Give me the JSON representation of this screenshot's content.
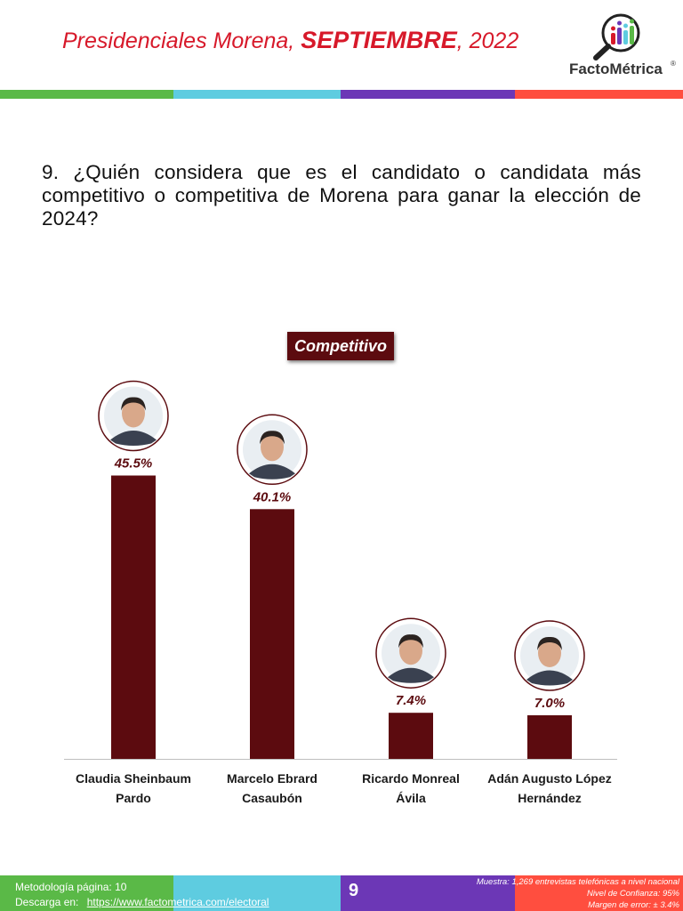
{
  "header": {
    "title_prefix": "Presidenciales Morena,",
    "title_month": "SEPTIEMBRE",
    "title_suffix": ", 2022",
    "brand": "FactoMétrica",
    "brand_mark": "®"
  },
  "stripe_colors": [
    "#5ab947",
    "#5ecce0",
    "#6c37b6",
    "#ff4e3f"
  ],
  "question": "9. ¿Quién considera que es el candidato o candidata más competitivo o competitiva de Morena para ganar la elección de 2024?",
  "chart_data": {
    "type": "bar",
    "series": [
      {
        "name": "Competitivo",
        "values": [
          45.5,
          40.1,
          7.4,
          7.0
        ]
      }
    ],
    "categories": [
      [
        "Claudia Sheinbaum",
        "Pardo"
      ],
      [
        "Marcelo Ebrard",
        "Casaubón"
      ],
      [
        "Ricardo Monreal",
        "Ávila"
      ],
      [
        "Adán Augusto López",
        "Hernández"
      ]
    ],
    "value_labels": [
      "45.5%",
      "40.1%",
      "7.4%",
      "7.0%"
    ],
    "ylim": [
      0,
      50
    ],
    "bar_color": "#5c0b0f",
    "grid": false,
    "legend": "top-center"
  },
  "footer": {
    "methodology": "Metodología página: 10",
    "download_label": "Descarga en:",
    "download_url": "https://www.factometrica.com/electoral",
    "page_number": "9",
    "sample": "Muestra:  1,269 entrevistas telefónicas a nivel nacional",
    "confidence": "Nivel de Confianza: 95%",
    "margin": "Margen de error: ± 3.4%"
  }
}
